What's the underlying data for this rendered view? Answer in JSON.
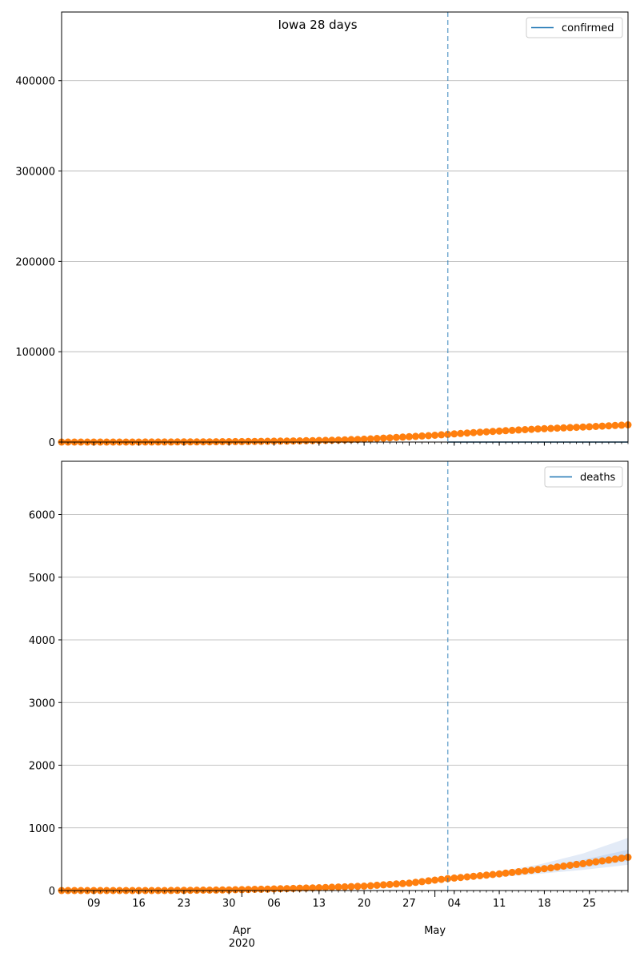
{
  "figure": {
    "title": "Iowa 28 days"
  },
  "colors": {
    "observed": "#ff7f0e",
    "forecast": "#1f77b4",
    "band": "#aec7e8",
    "grid": "#b0b0b0",
    "spine": "#000000"
  },
  "chart_data": [
    {
      "type": "scatter",
      "legend": {
        "label": "confirmed",
        "placement": "upper right"
      },
      "grid": "y",
      "ylim": [
        0,
        476000
      ],
      "yticks": [
        0,
        100000,
        200000,
        300000,
        400000
      ],
      "ytick_labels": [
        "0",
        "100000",
        "200000",
        "300000",
        "400000"
      ],
      "forecast_start": "2020-05-03",
      "observed": {
        "start_date": "2020-03-04",
        "end_date": "2020-05-31",
        "dates_sampled": [
          "2020-03-04",
          "2020-03-15",
          "2020-03-25",
          "2020-04-01",
          "2020-04-08",
          "2020-04-15",
          "2020-04-20",
          "2020-04-25",
          "2020-04-30",
          "2020-05-03",
          "2020-05-07",
          "2020-05-12",
          "2020-05-17",
          "2020-05-22",
          "2020-05-27",
          "2020-05-31"
        ],
        "values": [
          0,
          20,
          200,
          550,
          1100,
          2000,
          3200,
          5100,
          7100,
          8500,
          10500,
          12600,
          14500,
          16000,
          17600,
          19100
        ]
      },
      "forecast": {
        "dates": [
          "2020-05-03",
          "2020-05-31"
        ],
        "values": [
          0,
          0
        ]
      }
    },
    {
      "type": "scatter",
      "legend": {
        "label": "deaths",
        "placement": "upper right"
      },
      "grid": "y",
      "ylim": [
        0,
        6850
      ],
      "yticks": [
        0,
        1000,
        2000,
        3000,
        4000,
        5000,
        6000
      ],
      "ytick_labels": [
        "0",
        "1000",
        "2000",
        "3000",
        "4000",
        "5000",
        "6000"
      ],
      "forecast_start": "2020-05-03",
      "observed": {
        "dates_sampled": [
          "2020-03-04",
          "2020-03-20",
          "2020-03-30",
          "2020-04-06",
          "2020-04-13",
          "2020-04-20",
          "2020-04-27",
          "2020-05-03",
          "2020-05-10",
          "2020-05-17",
          "2020-05-24",
          "2020-05-31"
        ],
        "values": [
          0,
          0,
          10,
          25,
          45,
          70,
          118,
          190,
          255,
          335,
          430,
          530
        ]
      },
      "forecast": {
        "dates": [
          "2020-05-03",
          "2020-05-10",
          "2020-05-17",
          "2020-05-24",
          "2020-05-31"
        ],
        "median": [
          185,
          245,
          330,
          430,
          560
        ],
        "band_inner_low": [
          180,
          225,
          290,
          370,
          470
        ],
        "band_inner_high": [
          195,
          265,
          365,
          490,
          650
        ],
        "band_outer_low": [
          175,
          210,
          265,
          330,
          410
        ],
        "band_outer_high": [
          200,
          285,
          410,
          590,
          840
        ]
      }
    }
  ],
  "x_axis": {
    "range": [
      "2020-03-04",
      "2020-05-31"
    ],
    "minor_tick_labels": [
      "09",
      "16",
      "23",
      "30",
      "06",
      "13",
      "20",
      "27",
      "04",
      "11",
      "18",
      "25"
    ],
    "minor_tick_dates": [
      "2020-03-09",
      "2020-03-16",
      "2020-03-23",
      "2020-03-30",
      "2020-04-06",
      "2020-04-13",
      "2020-04-20",
      "2020-04-27",
      "2020-05-04",
      "2020-05-11",
      "2020-05-18",
      "2020-05-25"
    ],
    "major_tick_labels": [
      "Apr",
      "May"
    ],
    "major_tick_dates": [
      "2020-04-01",
      "2020-05-01"
    ],
    "year_label": "2020"
  }
}
